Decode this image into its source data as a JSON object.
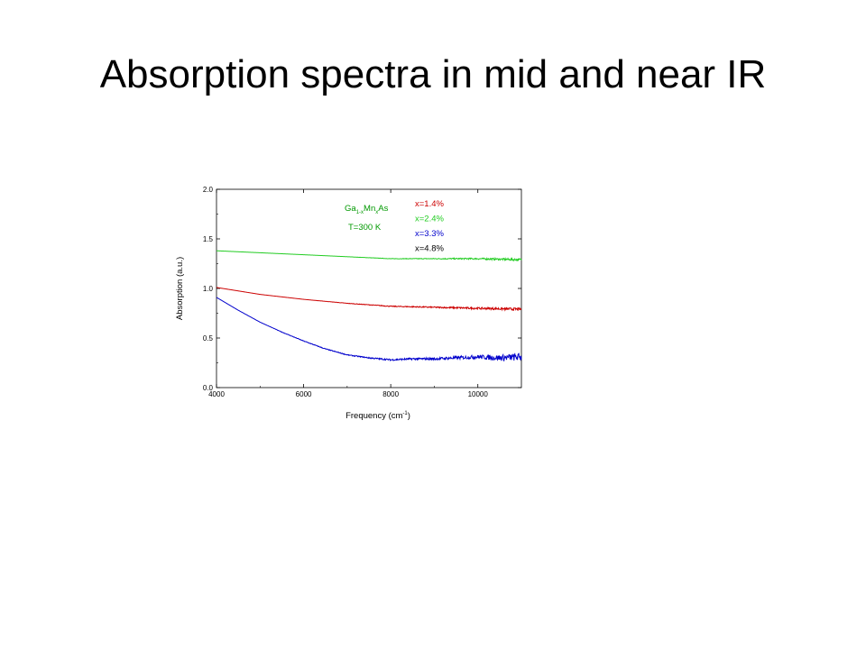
{
  "slide": {
    "title": "Absorption spectra in mid and near IR"
  },
  "chart_data": {
    "type": "line",
    "title": "",
    "xlabel": "Frequency (cm",
    "xlabel_sup": "-1",
    "xlabel_suffix": ")",
    "ylabel": "Absorption (a.u.)",
    "xlim": [
      4000,
      11000
    ],
    "ylim": [
      0.0,
      2.0
    ],
    "x_ticks": [
      4000,
      6000,
      8000,
      10000
    ],
    "x_tick_labels": [
      "4000",
      "6000",
      "8000",
      "10000"
    ],
    "y_ticks": [
      0.0,
      0.5,
      1.0,
      1.5,
      2.0
    ],
    "y_tick_labels": [
      "0.0",
      "0.5",
      "1.0",
      "1.5",
      "2.0"
    ],
    "grid": false,
    "legend_position": "top-right",
    "annotation": {
      "material_base": "Ga",
      "material_sub1": "1-x",
      "material_mid": "Mn",
      "material_sub2": "x",
      "material_end": "As",
      "temperature": "T=300 K",
      "color": "#009900"
    },
    "legend": [
      {
        "label": "x=1.4%",
        "color": "#cc0000"
      },
      {
        "label": "x=2.4%",
        "color": "#22cc22"
      },
      {
        "label": "x=3.3%",
        "color": "#0000cc"
      },
      {
        "label": "x=4.8%",
        "color": "#000000"
      }
    ],
    "series": [
      {
        "color": "#22cc22",
        "x": [
          4000,
          5000,
          6000,
          7000,
          8000,
          9000,
          10000,
          11000
        ],
        "y": [
          1.38,
          1.36,
          1.34,
          1.32,
          1.3,
          1.3,
          1.3,
          1.29
        ],
        "noise": [
          0.0,
          0.0,
          0.0,
          0.0,
          0.002,
          0.004,
          0.008,
          0.012
        ]
      },
      {
        "color": "#cc0000",
        "x": [
          4000,
          5000,
          6000,
          7000,
          8000,
          9000,
          10000,
          11000
        ],
        "y": [
          1.01,
          0.94,
          0.89,
          0.85,
          0.82,
          0.81,
          0.8,
          0.79
        ],
        "noise": [
          0.0,
          0.0,
          0.0,
          0.002,
          0.004,
          0.006,
          0.01,
          0.014
        ]
      },
      {
        "color": "#0000cc",
        "x": [
          4000,
          4500,
          5000,
          5500,
          6000,
          6500,
          7000,
          7500,
          8000,
          8500,
          9000,
          9500,
          10000,
          10500,
          11000
        ],
        "y": [
          0.91,
          0.78,
          0.66,
          0.56,
          0.47,
          0.39,
          0.33,
          0.3,
          0.28,
          0.29,
          0.29,
          0.3,
          0.31,
          0.3,
          0.31
        ],
        "noise": [
          0.0,
          0.0,
          0.0,
          0.002,
          0.003,
          0.004,
          0.004,
          0.006,
          0.008,
          0.01,
          0.012,
          0.016,
          0.02,
          0.03,
          0.04
        ]
      }
    ]
  }
}
